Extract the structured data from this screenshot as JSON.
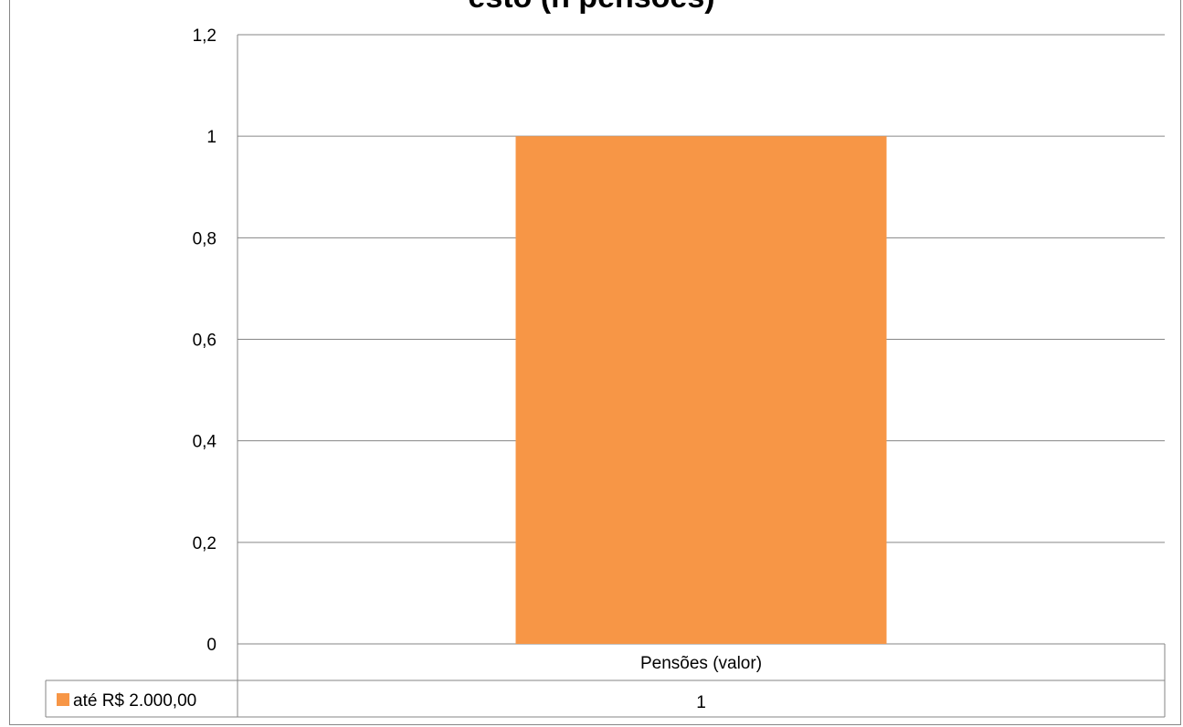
{
  "chart_data": {
    "type": "bar",
    "title": "",
    "title_fragment": "esto (n pensões)",
    "categories": [
      "Pensões (valor)"
    ],
    "series": [
      {
        "name": "até R$ 2.000,00",
        "values": [
          1
        ],
        "color": "#f79646"
      }
    ],
    "ylim": [
      0,
      1.2
    ],
    "yticks": [
      "0",
      "0,2",
      "0,4",
      "0,6",
      "0,8",
      "1",
      "1,2"
    ],
    "grid": true,
    "legend": "data-table",
    "data_table": {
      "rows": [
        {
          "label": "até R$ 2.000,00",
          "values": [
            "1"
          ]
        }
      ]
    }
  },
  "colors": {
    "gridline": "#868686",
    "bar": "#f79646"
  }
}
